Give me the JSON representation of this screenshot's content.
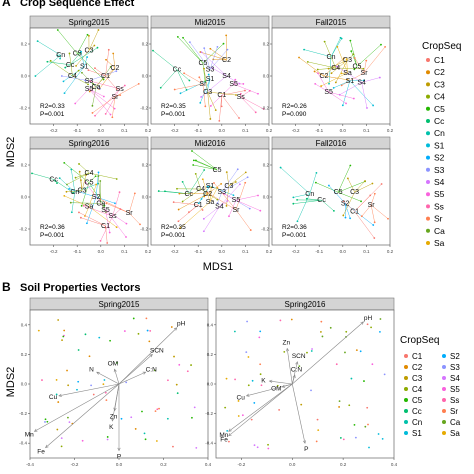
{
  "section_a": {
    "letter": "A",
    "title": "Crop Sequence Effect"
  },
  "section_b": {
    "letter": "B",
    "title": "Soil Properties Vectors"
  },
  "axes": {
    "xlabel": "MDS1",
    "ylabel": "MDS2",
    "xlabel_b": "",
    "ylabel_b": "MDS2"
  },
  "legend": {
    "title": "CropSeq",
    "entries": [
      {
        "code": "C1",
        "color": "#F8766D"
      },
      {
        "code": "C2",
        "color": "#E18A00"
      },
      {
        "code": "C3",
        "color": "#BE9C00"
      },
      {
        "code": "C4",
        "color": "#8CAB00"
      },
      {
        "code": "C5",
        "color": "#24B700"
      },
      {
        "code": "Cc",
        "color": "#00BE70"
      },
      {
        "code": "Cn",
        "color": "#00C1AB"
      },
      {
        "code": "S1",
        "color": "#00BBDA"
      },
      {
        "code": "S2",
        "color": "#00ACFC"
      },
      {
        "code": "S3",
        "color": "#8B93FF"
      },
      {
        "code": "S4",
        "color": "#D575FE"
      },
      {
        "code": "S5",
        "color": "#F962DD"
      },
      {
        "code": "Ss",
        "color": "#FF65AC"
      },
      {
        "code": "Sr",
        "color": "#FF7F50"
      },
      {
        "code": "Ca",
        "color": "#66A61E"
      },
      {
        "code": "Sa",
        "color": "#E6AB02"
      }
    ]
  },
  "chart_data": [
    {
      "type": "scatter",
      "panel": "Spring2015",
      "xlim": [
        -0.3,
        0.2
      ],
      "ylim": [
        -0.3,
        0.3
      ],
      "xticks": [
        -0.2,
        -0.1,
        0.0,
        0.1,
        0.2
      ],
      "yticks": [
        -0.2,
        0.0,
        0.2
      ],
      "stats": [
        "R2=0.33",
        "P=0.001"
      ],
      "centroids": [
        {
          "label": "Cn",
          "x": -0.17,
          "y": 0.13
        },
        {
          "label": "C3",
          "x": -0.05,
          "y": 0.16
        },
        {
          "label": "C5",
          "x": -0.1,
          "y": 0.14
        },
        {
          "label": "Cc",
          "x": -0.13,
          "y": 0.07
        },
        {
          "label": "S1",
          "x": -0.07,
          "y": 0.06
        },
        {
          "label": "C2",
          "x": 0.06,
          "y": 0.05
        },
        {
          "label": "C4",
          "x": -0.12,
          "y": 0.0
        },
        {
          "label": "S3",
          "x": -0.05,
          "y": -0.03
        },
        {
          "label": "Ca",
          "x": -0.02,
          "y": -0.07
        },
        {
          "label": "S5",
          "x": -0.05,
          "y": -0.08
        },
        {
          "label": "C1",
          "x": 0.02,
          "y": 0.0
        },
        {
          "label": "Ss",
          "x": 0.08,
          "y": -0.08
        },
        {
          "label": "Sr",
          "x": 0.06,
          "y": -0.13
        }
      ]
    },
    {
      "type": "scatter",
      "panel": "Mid2015",
      "xlim": [
        -0.3,
        0.2
      ],
      "ylim": [
        -0.3,
        0.3
      ],
      "xticks": [
        -0.2,
        -0.1,
        0.0,
        0.1,
        0.2
      ],
      "yticks": [
        -0.2,
        0.0,
        0.2
      ],
      "stats": [
        "R2=0.35",
        "P=0.001"
      ],
      "centroids": [
        {
          "label": "Cc",
          "x": -0.19,
          "y": 0.04
        },
        {
          "label": "C5",
          "x": -0.08,
          "y": 0.08
        },
        {
          "label": "C2",
          "x": 0.02,
          "y": 0.1
        },
        {
          "label": "S3",
          "x": -0.05,
          "y": 0.04
        },
        {
          "label": "S1",
          "x": -0.05,
          "y": -0.02
        },
        {
          "label": "S4",
          "x": 0.02,
          "y": 0.0
        },
        {
          "label": "Sr",
          "x": -0.08,
          "y": -0.05
        },
        {
          "label": "S5",
          "x": 0.05,
          "y": -0.05
        },
        {
          "label": "C1",
          "x": 0.0,
          "y": -0.12
        },
        {
          "label": "C3",
          "x": -0.06,
          "y": -0.1
        },
        {
          "label": "Ss",
          "x": 0.08,
          "y": -0.13
        }
      ]
    },
    {
      "type": "scatter",
      "panel": "Fall2015",
      "xlim": [
        -0.3,
        0.2
      ],
      "ylim": [
        -0.3,
        0.3
      ],
      "xticks": [
        -0.2,
        -0.1,
        0.0,
        0.1,
        0.2
      ],
      "yticks": [
        -0.2,
        0.0,
        0.2
      ],
      "stats": [
        "R2=0.26",
        "P=0.090"
      ],
      "centroids": [
        {
          "label": "Cn",
          "x": -0.05,
          "y": 0.12
        },
        {
          "label": "C4",
          "x": -0.03,
          "y": 0.05
        },
        {
          "label": "C3",
          "x": 0.02,
          "y": 0.1
        },
        {
          "label": "C2",
          "x": -0.08,
          "y": 0.0
        },
        {
          "label": "Sa",
          "x": 0.02,
          "y": 0.02
        },
        {
          "label": "C5",
          "x": 0.06,
          "y": 0.06
        },
        {
          "label": "Sr",
          "x": 0.09,
          "y": 0.02
        },
        {
          "label": "S1",
          "x": 0.03,
          "y": -0.03
        },
        {
          "label": "S4",
          "x": 0.08,
          "y": -0.04
        },
        {
          "label": "S5",
          "x": -0.06,
          "y": -0.1
        }
      ]
    },
    {
      "type": "scatter",
      "panel": "Spring2016",
      "xlim": [
        -0.3,
        0.2
      ],
      "ylim": [
        -0.3,
        0.3
      ],
      "xticks": [
        -0.2,
        -0.1,
        0.0,
        0.1,
        0.2
      ],
      "yticks": [
        -0.2,
        0.0,
        0.2
      ],
      "stats": [
        "R2=0.36",
        "P=0.001"
      ],
      "centroids": [
        {
          "label": "C4",
          "x": -0.05,
          "y": 0.15
        },
        {
          "label": "Cc",
          "x": -0.2,
          "y": 0.11
        },
        {
          "label": "C5",
          "x": -0.05,
          "y": 0.09
        },
        {
          "label": "Cn",
          "x": -0.11,
          "y": 0.03
        },
        {
          "label": "S2",
          "x": -0.02,
          "y": 0.0
        },
        {
          "label": "C3",
          "x": -0.08,
          "y": 0.04
        },
        {
          "label": "Ca",
          "x": 0.0,
          "y": -0.04
        },
        {
          "label": "Sa",
          "x": -0.05,
          "y": -0.06
        },
        {
          "label": "S5",
          "x": 0.02,
          "y": -0.08
        },
        {
          "label": "Ss",
          "x": 0.05,
          "y": -0.12
        },
        {
          "label": "Sr",
          "x": 0.12,
          "y": -0.1
        },
        {
          "label": "C1",
          "x": 0.02,
          "y": -0.18
        }
      ]
    },
    {
      "type": "scatter",
      "panel": "Mid2016",
      "xlim": [
        -0.3,
        0.2
      ],
      "ylim": [
        -0.3,
        0.3
      ],
      "xticks": [
        -0.2,
        -0.1,
        0.0,
        0.1,
        0.2
      ],
      "yticks": [
        -0.2,
        0.0,
        0.2
      ],
      "stats": [
        "R2=0.35",
        "P=0.001"
      ],
      "centroids": [
        {
          "label": "C5",
          "x": -0.02,
          "y": 0.17
        },
        {
          "label": "S1",
          "x": -0.05,
          "y": 0.07
        },
        {
          "label": "C3",
          "x": 0.03,
          "y": 0.07
        },
        {
          "label": "C4",
          "x": -0.09,
          "y": 0.05
        },
        {
          "label": "Cc",
          "x": -0.14,
          "y": 0.02
        },
        {
          "label": "C2",
          "x": -0.06,
          "y": 0.02
        },
        {
          "label": "S3",
          "x": 0.0,
          "y": 0.03
        },
        {
          "label": "S5",
          "x": 0.06,
          "y": -0.02
        },
        {
          "label": "C1",
          "x": -0.1,
          "y": -0.05
        },
        {
          "label": "Sa",
          "x": -0.05,
          "y": -0.03
        },
        {
          "label": "S4",
          "x": -0.01,
          "y": -0.06
        },
        {
          "label": "Sr",
          "x": 0.06,
          "y": -0.08
        }
      ]
    },
    {
      "type": "scatter",
      "panel": "Fall2016",
      "xlim": [
        -0.3,
        0.2
      ],
      "ylim": [
        -0.3,
        0.3
      ],
      "xticks": [
        -0.2,
        -0.1,
        0.0,
        0.1,
        0.2
      ],
      "yticks": [
        -0.2,
        0.0,
        0.2
      ],
      "stats": [
        "R2=0.36",
        "P=0.001"
      ],
      "centroids": [
        {
          "label": "Cn",
          "x": -0.14,
          "y": 0.02
        },
        {
          "label": "Cc",
          "x": -0.09,
          "y": -0.02
        },
        {
          "label": "C5",
          "x": -0.02,
          "y": 0.03
        },
        {
          "label": "S2",
          "x": 0.01,
          "y": -0.04
        },
        {
          "label": "C3",
          "x": 0.05,
          "y": 0.03
        },
        {
          "label": "C1",
          "x": 0.05,
          "y": -0.09
        },
        {
          "label": "Sr",
          "x": 0.12,
          "y": -0.05
        }
      ]
    },
    {
      "type": "scatter",
      "panel": "Spring2015",
      "xlim": [
        -0.4,
        0.4
      ],
      "ylim": [
        -0.5,
        0.5
      ],
      "xticks": [
        -0.4,
        -0.2,
        0.0,
        0.2,
        0.4
      ],
      "yticks": [
        -0.4,
        -0.2,
        0.0,
        0.2,
        0.4
      ],
      "vectors": [
        {
          "label": "pH",
          "x": 0.26,
          "y": 0.38
        },
        {
          "label": "SCN",
          "x": 0.15,
          "y": 0.2
        },
        {
          "label": "OM",
          "x": -0.02,
          "y": 0.1
        },
        {
          "label": "N",
          "x": -0.1,
          "y": 0.08
        },
        {
          "label": "C:N",
          "x": 0.12,
          "y": 0.08
        },
        {
          "label": "Cu",
          "x": -0.27,
          "y": -0.08
        },
        {
          "label": "Zn",
          "x": -0.02,
          "y": -0.18
        },
        {
          "label": "K",
          "x": -0.03,
          "y": -0.25
        },
        {
          "label": "Mn",
          "x": -0.38,
          "y": -0.32
        },
        {
          "label": "Fe",
          "x": -0.33,
          "y": -0.43
        },
        {
          "label": "P",
          "x": 0.0,
          "y": -0.45
        }
      ]
    },
    {
      "type": "scatter",
      "panel": "Spring2016",
      "xlim": [
        -0.3,
        0.4
      ],
      "ylim": [
        -0.5,
        0.5
      ],
      "xticks": [
        -0.2,
        0.0,
        0.2,
        0.4
      ],
      "yticks": [
        -0.4,
        -0.2,
        0.0,
        0.2,
        0.4
      ],
      "vectors": [
        {
          "label": "pH",
          "x": 0.28,
          "y": 0.42
        },
        {
          "label": "Zn",
          "x": -0.02,
          "y": 0.24
        },
        {
          "label": "SCN",
          "x": 0.02,
          "y": 0.15
        },
        {
          "label": "C:N",
          "x": 0.01,
          "y": 0.06
        },
        {
          "label": "OM",
          "x": -0.04,
          "y": -0.02
        },
        {
          "label": "K",
          "x": -0.09,
          "y": 0.02
        },
        {
          "label": "Cu",
          "x": -0.18,
          "y": -0.08
        },
        {
          "label": "Mn",
          "x": -0.25,
          "y": -0.32
        },
        {
          "label": "Fe",
          "x": -0.25,
          "y": -0.35
        },
        {
          "label": "P",
          "x": 0.05,
          "y": -0.4
        }
      ]
    }
  ]
}
